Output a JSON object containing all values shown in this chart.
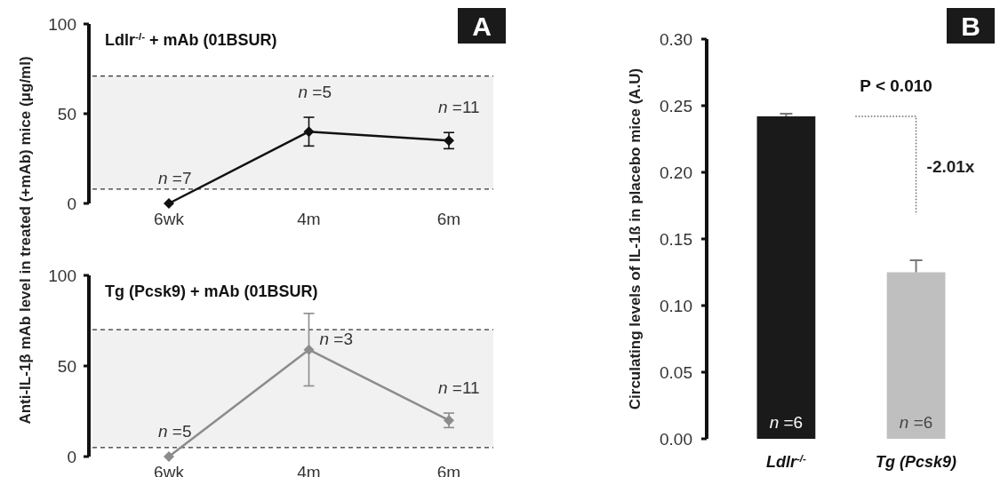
{
  "chart_data": [
    {
      "type": "line",
      "title": "Ldlr$^{-/-}$  + mAb (01BSUR)",
      "ylabel": "Anti-IL-1β mAb level in treated (+mAb) mice (μg/ml)",
      "categories": [
        "6wk",
        "4m",
        "6m"
      ],
      "series": [
        {
          "color": "#111111",
          "values": [
            0,
            40,
            35
          ],
          "errors": [
            null,
            8,
            4.5
          ]
        }
      ],
      "ylim": [
        0,
        100
      ],
      "yticks": [
        0,
        50,
        100
      ],
      "marker": "diamond",
      "bands": [
        {
          "axis": "y",
          "from": 8,
          "to": 71,
          "color": "#f1f1f1"
        }
      ],
      "ref_lines": [
        {
          "axis": "y",
          "value": 8,
          "color": "#333333",
          "line_style": "dashed"
        },
        {
          "axis": "y",
          "value": 71,
          "color": "#333333",
          "line_style": "dashed"
        }
      ],
      "annotations": [
        "A",
        "n =7",
        "n =5",
        "n =11"
      ],
      "grid": false
    },
    {
      "type": "line",
      "title": "Tg (Pcsk9) + mAb (01BSUR)",
      "categories": [
        "6wk",
        "4m",
        "6m"
      ],
      "series": [
        {
          "color": "#8c8c8c",
          "values": [
            0,
            59,
            20
          ],
          "errors": [
            null,
            20,
            4
          ]
        }
      ],
      "ylim": [
        0,
        100
      ],
      "yticks": [
        0,
        50,
        100
      ],
      "marker": "diamond",
      "bands": [
        {
          "axis": "y",
          "from": 5,
          "to": 70,
          "color": "#f1f1f1"
        }
      ],
      "ref_lines": [
        {
          "axis": "y",
          "value": 5,
          "color": "#333333",
          "line_style": "dashed"
        },
        {
          "axis": "y",
          "value": 70,
          "color": "#333333",
          "line_style": "dashed"
        }
      ],
      "annotations": [
        "n =5",
        "n =3",
        "n =11"
      ],
      "grid": false
    },
    {
      "type": "bar",
      "ylabel": "Circulating levels of IL-1ß in placebo mice (A.U)",
      "categories": [
        "Ldlr$^{-/-}$",
        "Tg (Pcsk9)"
      ],
      "values": [
        0.242,
        0.125
      ],
      "colors": [
        "#1a1a1a",
        "#bfbfbf"
      ],
      "errors": [
        0.002,
        0.009
      ],
      "ylim": [
        0,
        0.3
      ],
      "yticks": [
        {
          "value": 0,
          "label": "0.00"
        },
        {
          "value": 0.05,
          "label": "0.05"
        },
        {
          "value": 0.1,
          "label": "0.10"
        },
        {
          "value": 0.15,
          "label": "0.15"
        },
        {
          "value": 0.2,
          "label": "0.20"
        },
        {
          "value": 0.25,
          "label": "0.25"
        },
        {
          "value": 0.3,
          "label": "0.30"
        }
      ],
      "annotations": [
        "B",
        "P < 0.010",
        "-2.01x",
        "n =6",
        "n =6"
      ],
      "grid": false
    }
  ]
}
